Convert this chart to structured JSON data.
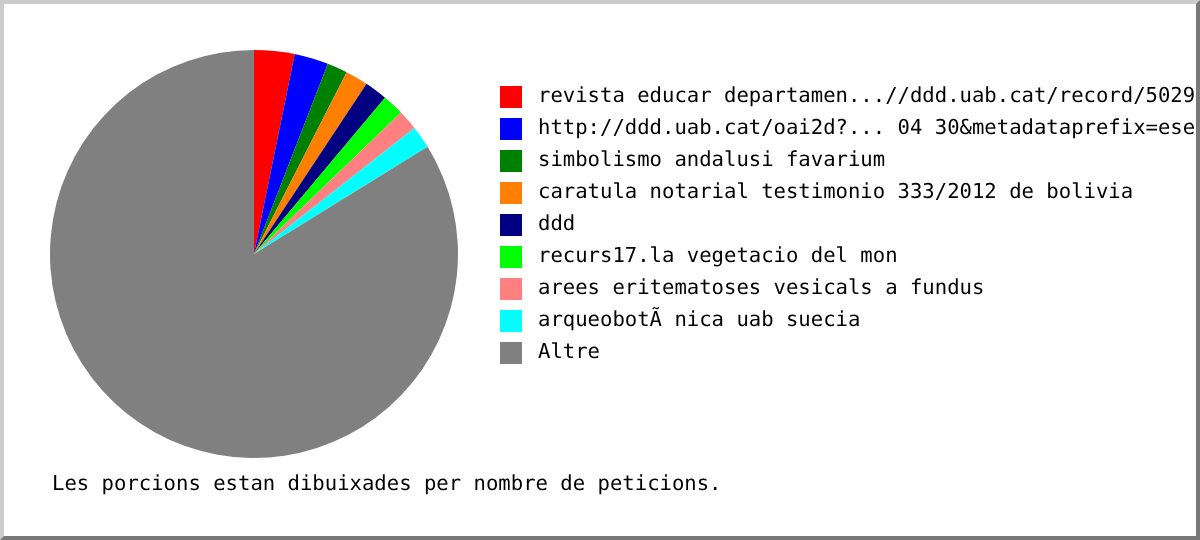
{
  "chart_data": {
    "type": "pie",
    "categories": [
      "revista educar departamen...//ddd.uab.cat/record/5029",
      "http://ddd.uab.cat/oai2d?... 04 30&metadataprefix=ese",
      "simbolismo andalusi favarium",
      "caratula notarial testimonio 333/2012 de bolivia",
      "ddd",
      "recurs17.la vegetacio del mon",
      "arees eritematoses vesicals a fundus",
      "arqueobotÃ nica uab suecia",
      "Altre"
    ],
    "values": [
      3.2,
      2.7,
      1.6,
      1.8,
      1.8,
      1.7,
      1.6,
      1.8,
      83.8
    ],
    "colors": [
      "#ff0000",
      "#0000ff",
      "#008000",
      "#ff8000",
      "#000080",
      "#00ff00",
      "#ff8080",
      "#00ffff",
      "#808080"
    ],
    "legend": "right",
    "annotations": [
      "Les porcions estan dibuixades per nombre de peticions."
    ]
  }
}
